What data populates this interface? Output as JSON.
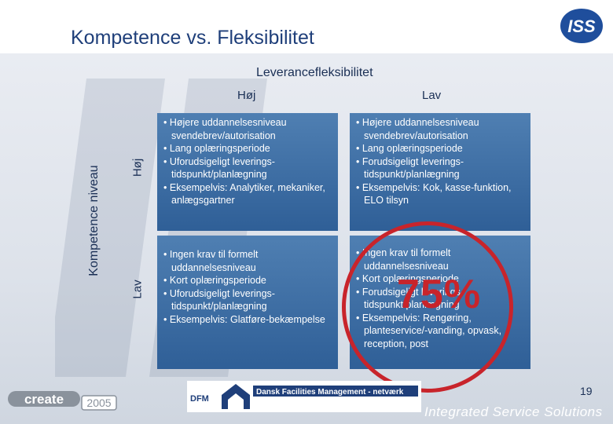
{
  "title": "Kompetence vs. Fleksibilitet",
  "top_axis": {
    "label": "Leverancefleksibilitet",
    "high": "Høj",
    "low": "Lav"
  },
  "side_axis": {
    "label": "Kompetence niveau",
    "high": "Høj",
    "low": "Lav"
  },
  "cells": {
    "top_left": [
      "Højere uddannelsesniveau svendebrev/autorisation",
      "Lang oplæringsperiode",
      "Uforudsigeligt leverings-tidspunkt/planlægning",
      "Eksempelvis: Analytiker, mekaniker, anlægsgartner"
    ],
    "top_right": [
      "Højere uddannelsesniveau svendebrev/autorisation",
      "Lang oplæringsperiode",
      "Forudsigeligt leverings-tidspunkt/planlægning",
      "Eksempelvis: Kok, kasse-funktion, ELO tilsyn"
    ],
    "bottom_left": [
      "Ingen krav til formelt uddannelsesniveau",
      "Kort oplæringsperiode",
      "Uforudsigeligt leverings-tidspunkt/planlægning",
      "Eksempelvis: Glatføre-bekæmpelse"
    ],
    "bottom_right": [
      "Ingen krav til formelt uddannelsesniveau",
      "Kort oplæringsperiode",
      "Forudsigeligt leverings-tidspunkt/planlægning",
      "Eksempelvis: Rengøring, planteservice/-vanding, opvask, reception, post"
    ]
  },
  "highlight": {
    "text": "75%",
    "color": "#c8242b"
  },
  "footer": {
    "create_text": "create",
    "create_year": "2005",
    "dfm_abbr": "DFM",
    "dfm_name": "Dansk Facilities Management - netværk",
    "page_number": "19",
    "tagline": "Integrated Service Solutions"
  },
  "logo": {
    "text": "ISS"
  },
  "colors": {
    "title": "#1f3f7a",
    "cell": "#3a6aa1",
    "accent": "#c8242b"
  }
}
